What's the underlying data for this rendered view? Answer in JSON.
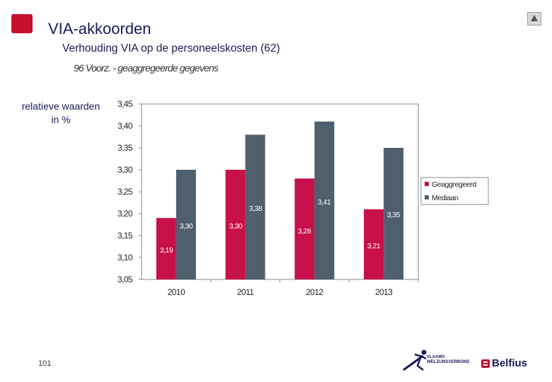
{
  "header": {
    "title": "VIA-akkoorden",
    "subtitle": "Verhouding VIA op de personeelskosten (62)",
    "subsubtitle": "96 Voorz. - geaggregeerde gegevens"
  },
  "y_axis_note": "relatieve waarden in %",
  "page_number": "101",
  "logos": {
    "vlaams": "VLAAMS WELZIJNSVERBOND",
    "belfius": "Belfius"
  },
  "colors": {
    "geaggregeerd": "#c8104a",
    "mediaan": "#4f5f6e",
    "brand_red": "#c8102e"
  },
  "chart_data": {
    "type": "bar",
    "categories": [
      "2010",
      "2011",
      "2012",
      "2013"
    ],
    "series": [
      {
        "name": "Geaggregeerd",
        "values": [
          3.19,
          3.3,
          3.28,
          3.21
        ],
        "labels": [
          "3,19",
          "3,30",
          "3,28",
          "3,21"
        ]
      },
      {
        "name": "Mediaan",
        "values": [
          3.3,
          3.38,
          3.41,
          3.35
        ],
        "labels": [
          "3,30",
          "3,38",
          "3,41",
          "3,35"
        ]
      }
    ],
    "ylim": [
      3.05,
      3.45
    ],
    "yticks": [
      "3,45",
      "3,40",
      "3,35",
      "3,30",
      "3,25",
      "3,20",
      "3,15",
      "3,10",
      "3,05"
    ],
    "grid": false,
    "legend": "right"
  }
}
